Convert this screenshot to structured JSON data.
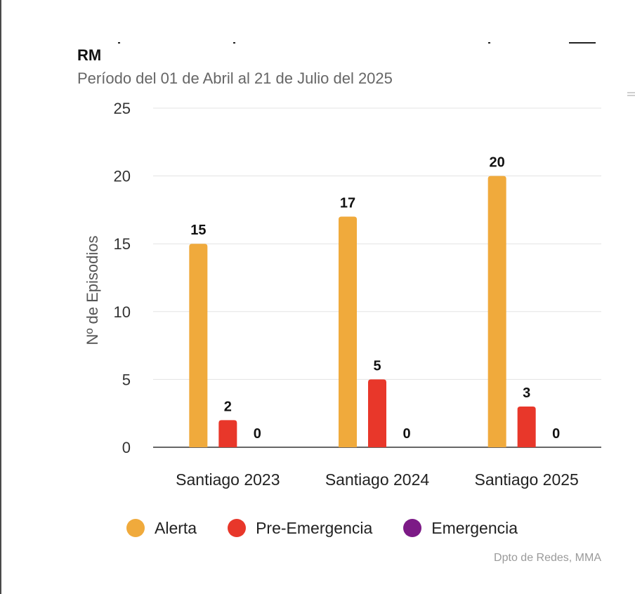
{
  "chart_data": {
    "type": "bar",
    "title": "RM",
    "subtitle": "Período del 01 de Abril al 21 de Julio del 2025",
    "xlabel": "",
    "ylabel": "Nº de Episodios",
    "ylim": [
      0,
      25
    ],
    "yticks": [
      0,
      5,
      10,
      15,
      20,
      25
    ],
    "categories": [
      "Santiago 2023",
      "Santiago 2024",
      "Santiago 2025"
    ],
    "series": [
      {
        "name": "Alerta",
        "color": "#F0AA3C",
        "values": [
          15,
          17,
          20
        ]
      },
      {
        "name": "Pre-Emergencia",
        "color": "#E8372A",
        "values": [
          2,
          5,
          3
        ]
      },
      {
        "name": "Emergencia",
        "color": "#7C1A86",
        "values": [
          0,
          0,
          0
        ]
      }
    ],
    "grid": true,
    "legend_position": "bottom",
    "data_labels": true
  },
  "credit": "Dpto de Redes, MMA"
}
